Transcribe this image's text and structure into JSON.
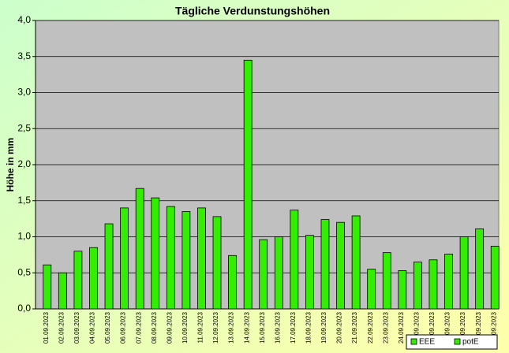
{
  "chart_data": {
    "type": "bar",
    "title": "Tägliche Verdunstungshöhen",
    "y_label": "Höhe in mm",
    "categories": [
      "01.09.2023",
      "02.09.2023",
      "03.09.2023",
      "04.09.2023",
      "05.09.2023",
      "06.09.2023",
      "07.09.2023",
      "08.09.2023",
      "09.09.2023",
      "10.09.2023",
      "11.09.2023",
      "12.09.2023",
      "13.09.2023",
      "14.09.2023",
      "15.09.2023",
      "16.09.2023",
      "17.09.2023",
      "18.09.2023",
      "19.09.2023",
      "20.09.2023",
      "21.09.2023",
      "22.09.2023",
      "23.09.2023",
      "24.09.2023",
      "25.09.2023",
      "26.09.2023",
      "27.09.2023",
      "28.09.2023",
      "29.09.2023",
      "30.09.2023"
    ],
    "series": [
      {
        "name": "EEE",
        "color": "#33ee00",
        "values": [
          null,
          null,
          null,
          null,
          null,
          null,
          null,
          null,
          null,
          null,
          null,
          null,
          null,
          null,
          null,
          null,
          null,
          null,
          null,
          null,
          null,
          null,
          null,
          null,
          null,
          null,
          null,
          null,
          null,
          null
        ]
      },
      {
        "name": "potE",
        "color": "#33ee00",
        "values": [
          0.61,
          0.5,
          0.8,
          0.85,
          1.18,
          1.4,
          1.67,
          1.54,
          1.42,
          1.35,
          1.4,
          1.28,
          0.74,
          3.45,
          0.96,
          1.0,
          1.37,
          1.02,
          1.24,
          1.2,
          1.29,
          0.55,
          0.78,
          0.53,
          0.65,
          0.68,
          0.76,
          1.0,
          1.11,
          0.87
        ]
      }
    ],
    "ylim": [
      0,
      4
    ],
    "yticks": [
      {
        "value": 0,
        "label": "0,0"
      },
      {
        "value": 0.5,
        "label": "0,5"
      },
      {
        "value": 1,
        "label": "1,0"
      },
      {
        "value": 1.5,
        "label": "1,5"
      },
      {
        "value": 2,
        "label": "2,0"
      },
      {
        "value": 2.5,
        "label": "2,5"
      },
      {
        "value": 3,
        "label": "3,0"
      },
      {
        "value": 3.5,
        "label": "3,5"
      },
      {
        "value": 4,
        "label": "4,0"
      }
    ],
    "grid": true
  }
}
